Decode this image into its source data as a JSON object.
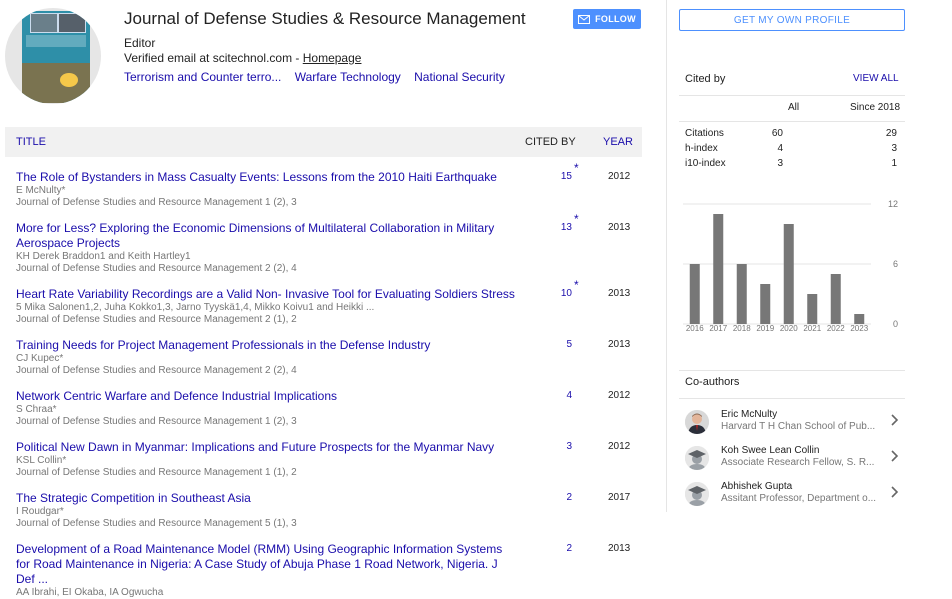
{
  "profile": {
    "name": "Journal of Defense Studies & Resource Management",
    "affiliation": "Editor",
    "verified_text": "Verified email at scitechnol.com - ",
    "homepage_label": "Homepage",
    "follow_label": "FOLLOW",
    "interests": [
      "Terrorism and Counter terro...",
      "Warfare Technology",
      "National Security"
    ]
  },
  "table": {
    "col_title": "TITLE",
    "col_cited": "CITED BY",
    "col_year": "YEAR"
  },
  "articles": [
    {
      "title": "The Role of Bystanders in Mass Casualty Events: Lessons from the 2010 Haiti Earthquake",
      "authors": "E McNulty*",
      "venue": "Journal of Defense Studies and Resource Management 1 (2), 3",
      "cited": "15",
      "star": "*",
      "year": "2012"
    },
    {
      "title": "More for Less? Exploring the Economic Dimensions of Multilateral Collaboration in Military Aerospace Projects",
      "authors": "KH Derek Braddon1 and Keith Hartley1",
      "venue": "Journal of Defense Studies and Resource Management 2 (2), 4",
      "cited": "13",
      "star": "*",
      "year": "2013"
    },
    {
      "title": "Heart Rate Variability Recordings are a Valid Non- Invasive Tool for Evaluating Soldiers Stress",
      "authors": "5 Mika Salonen1,2, Juha Kokko1,3, Jarno Tyyskä1,4, Mikko Koivu1 and Heikki ...",
      "venue": "Journal of Defense Studies and Resource Management 2 (1), 2",
      "cited": "10",
      "star": "*",
      "year": "2013"
    },
    {
      "title": "Training Needs for Project Management Professionals in the Defense Industry",
      "authors": "CJ Kupec*",
      "venue": "Journal of Defense Studies and Resource Management 2 (2), 4",
      "cited": "5",
      "star": "",
      "year": "2013"
    },
    {
      "title": "Network Centric Warfare and Defence Industrial Implications",
      "authors": "S Chraa*",
      "venue": "Journal of Defense Studies and Resource Management 1 (2), 3",
      "cited": "4",
      "star": "",
      "year": "2012"
    },
    {
      "title": "Political New Dawn in Myanmar: Implications and Future Prospects for the Myanmar Navy",
      "authors": "KSL Collin*",
      "venue": "Journal of Defense Studies and Resource Management 1 (1), 2",
      "cited": "3",
      "star": "",
      "year": "2012"
    },
    {
      "title": "The Strategic Competition in Southeast Asia",
      "authors": "I Roudgar*",
      "venue": "Journal of Defense Studies and Resource Management 5 (1), 3",
      "cited": "2",
      "star": "",
      "year": "2017"
    },
    {
      "title": "Development of a Road Maintenance Model (RMM) Using Geographic Information Systems for Road Maintenance in Nigeria: A Case Study of Abuja Phase 1 Road Network, Nigeria. J Def ...",
      "authors": "AA Ibrahi, EI Okaba, IA Ogwucha",
      "venue": "",
      "cited": "2",
      "star": "",
      "year": "2013"
    }
  ],
  "sidebar": {
    "own_profile_label": "GET MY OWN PROFILE",
    "cited_by_title": "Cited by",
    "view_all_label": "VIEW ALL",
    "col_all": "All",
    "col_since": "Since 2018",
    "stats": [
      {
        "label": "Citations",
        "all": "60",
        "since": "29"
      },
      {
        "label": "h-index",
        "all": "4",
        "since": "3"
      },
      {
        "label": "i10-index",
        "all": "3",
        "since": "1"
      }
    ],
    "coauthors_title": "Co-authors",
    "coauthors": [
      {
        "name": "Eric McNulty",
        "affiliation": "Harvard T H Chan School of Pub...",
        "avatar": "photo"
      },
      {
        "name": "Koh Swee Lean Collin",
        "affiliation": "Associate Research Fellow, S. R...",
        "avatar": "graduate-cap-icon"
      },
      {
        "name": "Abhishek Gupta",
        "affiliation": "Assitant Professor, Department o...",
        "avatar": "graduate-cap-icon"
      }
    ]
  },
  "chart_data": {
    "type": "bar",
    "categories": [
      "2016",
      "2017",
      "2018",
      "2019",
      "2020",
      "2021",
      "2022",
      "2023"
    ],
    "values": [
      6,
      11,
      6,
      4,
      10,
      3,
      5,
      1
    ],
    "yticks": [
      0,
      6,
      12
    ],
    "ylim": [
      0,
      12
    ],
    "grid": true,
    "bar_color": "#777777"
  },
  "colors": {
    "link": "#1a0dab",
    "accent": "#4d90fe",
    "muted": "#777777"
  }
}
